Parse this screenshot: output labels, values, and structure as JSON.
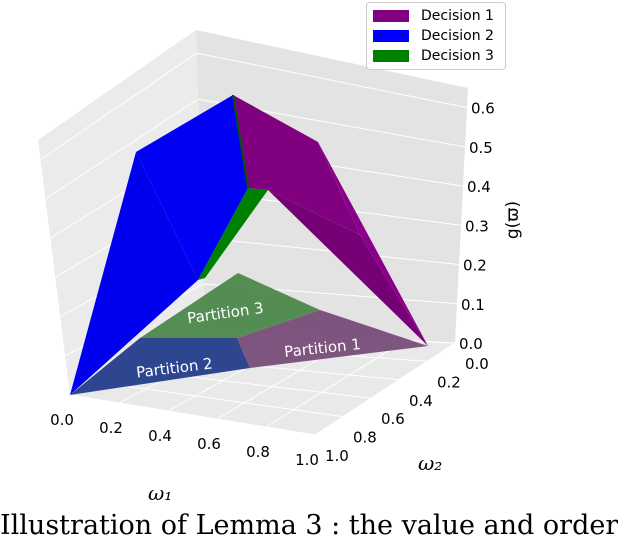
{
  "chart_data": {
    "type": "3d-surface",
    "xlabel": "ω₁",
    "ylabel": "ω₂",
    "zlabel": "g(ϖ)",
    "x_ticks": [
      "0.0",
      "0.2",
      "0.4",
      "0.6",
      "0.8",
      "1.0"
    ],
    "y_ticks": [
      "0.0",
      "0.2",
      "0.4",
      "0.6",
      "0.8",
      "1.0"
    ],
    "z_ticks": [
      "0.0",
      "0.1",
      "0.2",
      "0.3",
      "0.4",
      "0.5",
      "0.6"
    ],
    "xlim": [
      0,
      1
    ],
    "ylim": [
      0,
      1
    ],
    "zlim": [
      0,
      0.65
    ],
    "grid": true,
    "legend_placement": "top-right",
    "series": [
      {
        "name": "Decision 1",
        "color": "#800080"
      },
      {
        "name": "Decision 2",
        "color": "#0000ff"
      },
      {
        "name": "Decision 3",
        "color": "#008000"
      }
    ],
    "partitions": [
      {
        "label": "Partition 1",
        "color": "#7a4f7a"
      },
      {
        "label": "Partition 2",
        "color": "#27408b"
      },
      {
        "label": "Partition 3",
        "color": "#4f8a4f"
      }
    ]
  },
  "caption": "Illustration of Lemma 3 : the value and order"
}
